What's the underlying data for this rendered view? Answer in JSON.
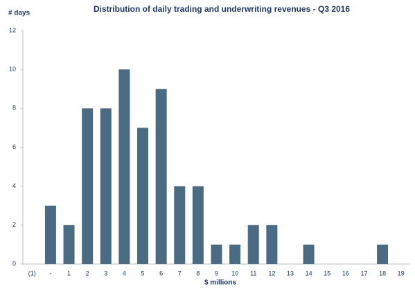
{
  "chart_data": {
    "type": "bar",
    "title": "Distribution of daily trading and underwriting revenues - Q3 2016",
    "y_label": "# days",
    "x_label": "$ millions",
    "categories": [
      "(1)",
      "-",
      "1",
      "2",
      "3",
      "4",
      "5",
      "6",
      "7",
      "8",
      "9",
      "10",
      "11",
      "12",
      "13",
      "14",
      "15",
      "16",
      "17",
      "18",
      "19"
    ],
    "values": [
      0,
      3,
      2,
      8,
      8,
      10,
      7,
      9,
      4,
      4,
      1,
      1,
      2,
      2,
      0,
      1,
      0,
      0,
      0,
      1,
      0
    ],
    "color": "#4b6b82",
    "ylim": [
      0,
      12
    ],
    "yticks": [
      0,
      2,
      4,
      6,
      8,
      10,
      12
    ]
  }
}
